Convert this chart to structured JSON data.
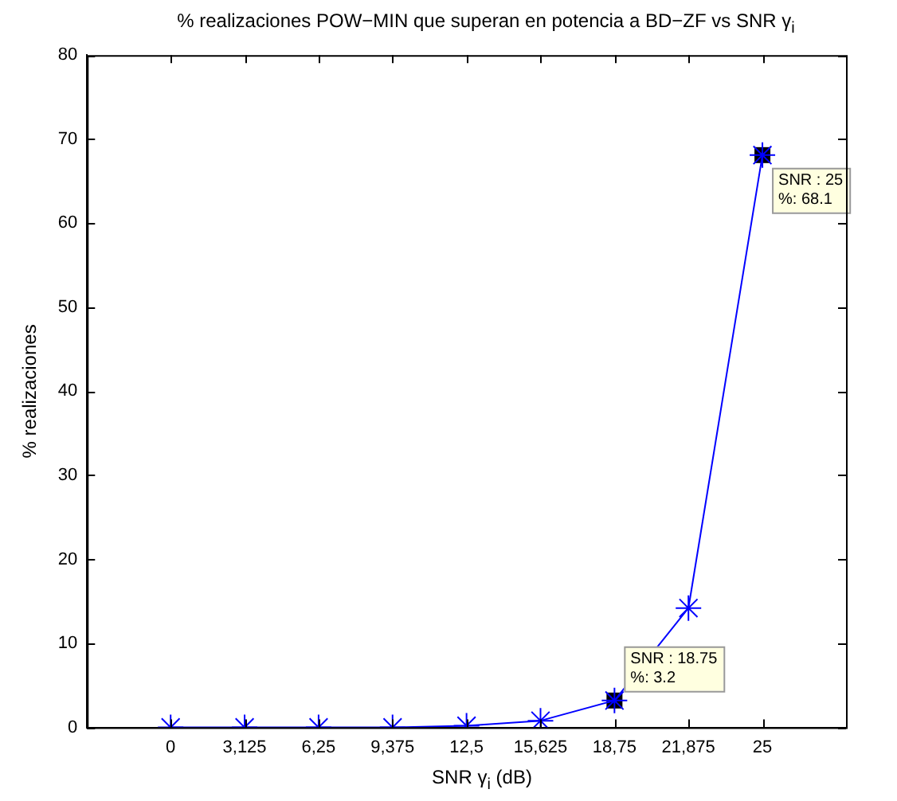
{
  "chart_data": {
    "type": "line",
    "title": "% realizaciones POW−MIN que superan en potencia a BD−ZF vs SNR γ$_{i}$",
    "xlabel": "SNR γ$_{i}$ (dB)",
    "ylabel": "% realizaciones",
    "categories": [
      "0",
      "3,125",
      "6,25",
      "9,375",
      "12,5",
      "15,625",
      "18,75",
      "21,875",
      "25"
    ],
    "series": [
      {
        "color": "#0000ff",
        "values": [
          0,
          0,
          0,
          0,
          0.2,
          0.8,
          3.2,
          14.2,
          68.1
        ]
      }
    ],
    "ylim": [
      0,
      80
    ],
    "yticks": [
      0,
      10,
      20,
      30,
      40,
      50,
      60,
      70,
      80
    ],
    "marker": "cross",
    "line_style": "solid",
    "grid": false,
    "legend": false,
    "annotations": [
      {
        "text": "SNR : 18.75\n%: 3.2",
        "x": "18,75",
        "y": 3.2
      },
      {
        "text": "SNR : 25\n%: 68.1",
        "x": "25",
        "y": 68.1
      }
    ]
  }
}
